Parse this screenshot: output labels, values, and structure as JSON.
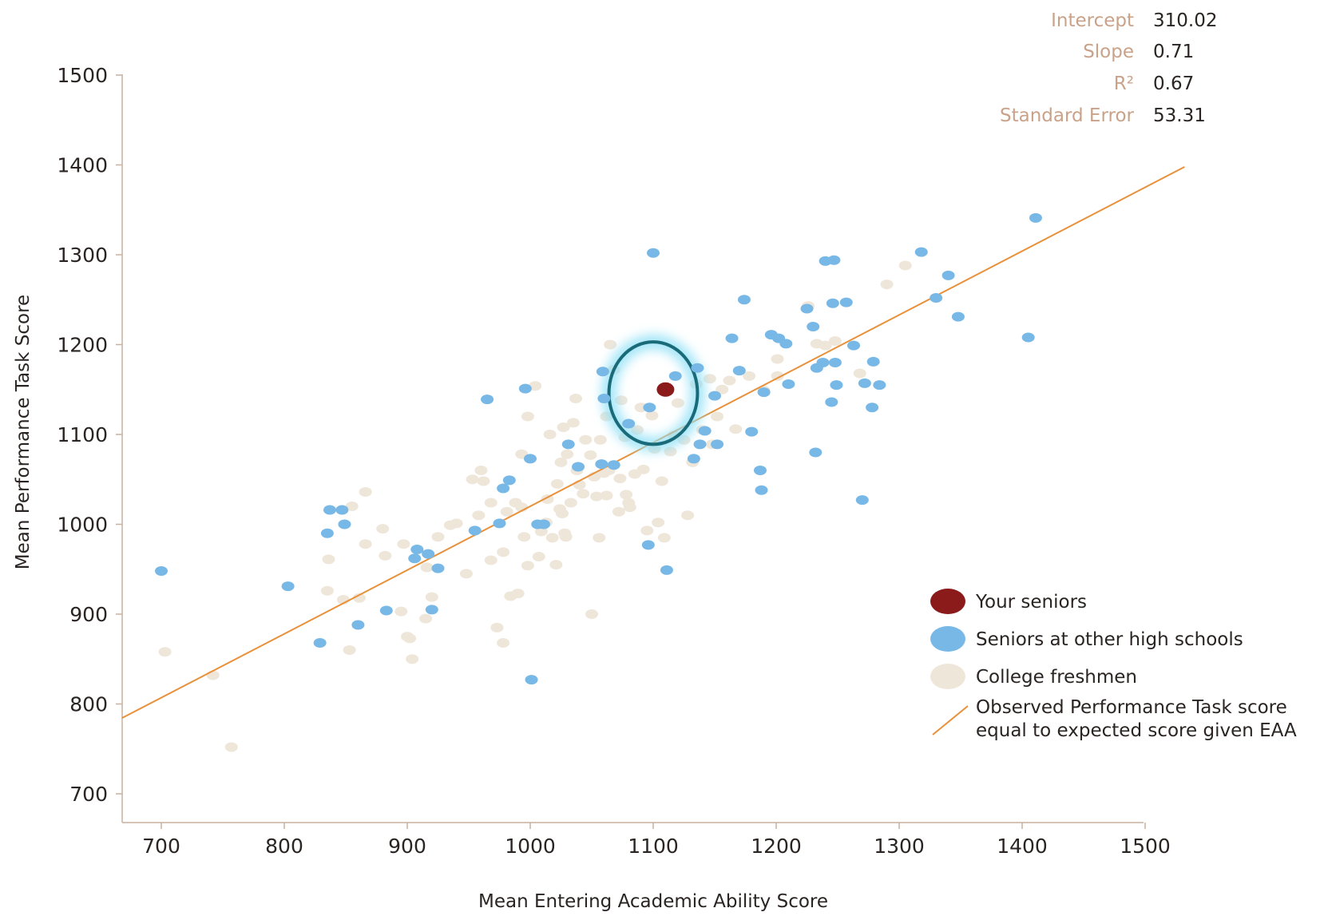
{
  "stats": [
    {
      "name": "Intercept",
      "value": "310.02"
    },
    {
      "name": "Slope",
      "value": "0.71"
    },
    {
      "name": "R²",
      "value": "0.67"
    },
    {
      "name": "Standard Error",
      "value": "53.31"
    }
  ],
  "chart_data": {
    "type": "scatter",
    "title": "",
    "xlabel": "Mean Entering Academic Ability Score",
    "ylabel": "Mean Performance Task Score",
    "xlim": [
      700,
      1500
    ],
    "ylim": [
      700,
      1500
    ],
    "xticks": [
      "700",
      "800",
      "900",
      "1000",
      "1100",
      "1200",
      "1300",
      "1400",
      "1500"
    ],
    "yticks": [
      "700",
      "800",
      "900",
      "1000",
      "1100",
      "1200",
      "1300",
      "1400",
      "1500"
    ],
    "grid": false,
    "legend_position": "bottom-right",
    "colors": {
      "your_seniors": "#8b1a1a",
      "other_seniors": "#78b8e6",
      "freshmen": "#efe6da",
      "line": "#e8913a",
      "highlight_ring": "#1a6b7a",
      "highlight_glow": "#8fe0f6",
      "axis": "#c9b19f"
    },
    "regression_line": {
      "name": "Observed Performance Task score equal to expected score given EAA",
      "intercept": 310.02,
      "slope": 0.71,
      "x_range": [
        668,
        1532
      ]
    },
    "highlight_ellipse": {
      "cx": 1100,
      "cy": 1146,
      "rx": 36,
      "ry": 57
    },
    "series": [
      {
        "name": "Your seniors",
        "points": [
          [
            1110,
            1150
          ]
        ]
      },
      {
        "name": "Seniors at other high schools",
        "points": [
          [
            700,
            948
          ],
          [
            803,
            931
          ],
          [
            829,
            868
          ],
          [
            835,
            990
          ],
          [
            837,
            1016
          ],
          [
            847,
            1016
          ],
          [
            849,
            1000
          ],
          [
            860,
            888
          ],
          [
            883,
            904
          ],
          [
            906,
            962
          ],
          [
            908,
            972
          ],
          [
            917,
            967
          ],
          [
            920,
            905
          ],
          [
            925,
            951
          ],
          [
            955,
            993
          ],
          [
            965,
            1139
          ],
          [
            975,
            1001
          ],
          [
            978,
            1040
          ],
          [
            983,
            1049
          ],
          [
            996,
            1151
          ],
          [
            1000,
            1073
          ],
          [
            1001,
            827
          ],
          [
            1006,
            1000
          ],
          [
            1011,
            1000
          ],
          [
            1031,
            1089
          ],
          [
            1039,
            1064
          ],
          [
            1058,
            1067
          ],
          [
            1059,
            1170
          ],
          [
            1060,
            1140
          ],
          [
            1068,
            1066
          ],
          [
            1080,
            1112
          ],
          [
            1096,
            977
          ],
          [
            1097,
            1130
          ],
          [
            1100,
            1302
          ],
          [
            1111,
            949
          ],
          [
            1118,
            1165
          ],
          [
            1133,
            1073
          ],
          [
            1136,
            1174
          ],
          [
            1138,
            1089
          ],
          [
            1142,
            1104
          ],
          [
            1150,
            1143
          ],
          [
            1152,
            1089
          ],
          [
            1164,
            1207
          ],
          [
            1170,
            1171
          ],
          [
            1174,
            1250
          ],
          [
            1180,
            1103
          ],
          [
            1187,
            1060
          ],
          [
            1188,
            1038
          ],
          [
            1190,
            1147
          ],
          [
            1196,
            1211
          ],
          [
            1202,
            1207
          ],
          [
            1208,
            1201
          ],
          [
            1210,
            1156
          ],
          [
            1225,
            1240
          ],
          [
            1230,
            1220
          ],
          [
            1232,
            1080
          ],
          [
            1233,
            1174
          ],
          [
            1238,
            1180
          ],
          [
            1240,
            1293
          ],
          [
            1245,
            1136
          ],
          [
            1246,
            1246
          ],
          [
            1247,
            1294
          ],
          [
            1248,
            1180
          ],
          [
            1249,
            1155
          ],
          [
            1257,
            1247
          ],
          [
            1263,
            1199
          ],
          [
            1270,
            1027
          ],
          [
            1272,
            1157
          ],
          [
            1278,
            1130
          ],
          [
            1279,
            1181
          ],
          [
            1284,
            1155
          ],
          [
            1318,
            1303
          ],
          [
            1330,
            1252
          ],
          [
            1340,
            1277
          ],
          [
            1348,
            1231
          ],
          [
            1405,
            1208
          ],
          [
            1411,
            1341
          ]
        ]
      },
      {
        "name": "College freshmen",
        "points": [
          [
            703,
            858
          ],
          [
            742,
            832
          ],
          [
            757,
            752
          ],
          [
            835,
            926
          ],
          [
            836,
            961
          ],
          [
            848,
            916
          ],
          [
            853,
            860
          ],
          [
            855,
            1020
          ],
          [
            861,
            918
          ],
          [
            866,
            978
          ],
          [
            866,
            1036
          ],
          [
            880,
            995
          ],
          [
            882,
            965
          ],
          [
            895,
            903
          ],
          [
            897,
            978
          ],
          [
            900,
            875
          ],
          [
            902,
            873
          ],
          [
            904,
            850
          ],
          [
            915,
            895
          ],
          [
            916,
            952
          ],
          [
            920,
            919
          ],
          [
            925,
            986
          ],
          [
            935,
            999
          ],
          [
            940,
            1001
          ],
          [
            948,
            945
          ],
          [
            953,
            1050
          ],
          [
            958,
            1010
          ],
          [
            960,
            1060
          ],
          [
            962,
            1048
          ],
          [
            968,
            960
          ],
          [
            968,
            1024
          ],
          [
            973,
            885
          ],
          [
            978,
            868
          ],
          [
            978,
            969
          ],
          [
            981,
            1014
          ],
          [
            984,
            920
          ],
          [
            988,
            1024
          ],
          [
            990,
            923
          ],
          [
            993,
            1078
          ],
          [
            993,
            1019
          ],
          [
            995,
            986
          ],
          [
            998,
            954
          ],
          [
            998,
            1120
          ],
          [
            1004,
            1154
          ],
          [
            1007,
            964
          ],
          [
            1009,
            992
          ],
          [
            1013,
            1002
          ],
          [
            1014,
            1028
          ],
          [
            1016,
            1100
          ],
          [
            1018,
            985
          ],
          [
            1021,
            955
          ],
          [
            1022,
            1045
          ],
          [
            1024,
            1017
          ],
          [
            1025,
            1069
          ],
          [
            1026,
            1012
          ],
          [
            1027,
            1108
          ],
          [
            1028,
            990
          ],
          [
            1029,
            986
          ],
          [
            1030,
            1078
          ],
          [
            1033,
            1024
          ],
          [
            1035,
            1113
          ],
          [
            1037,
            1140
          ],
          [
            1038,
            1060
          ],
          [
            1040,
            1044
          ],
          [
            1043,
            1034
          ],
          [
            1045,
            1094
          ],
          [
            1049,
            1077
          ],
          [
            1050,
            900
          ],
          [
            1052,
            1053
          ],
          [
            1054,
            1031
          ],
          [
            1056,
            985
          ],
          [
            1057,
            1094
          ],
          [
            1060,
            1057
          ],
          [
            1062,
            1120
          ],
          [
            1062,
            1032
          ],
          [
            1064,
            1060
          ],
          [
            1065,
            1200
          ],
          [
            1068,
            1172
          ],
          [
            1072,
            1014
          ],
          [
            1073,
            1051
          ],
          [
            1074,
            1138
          ],
          [
            1077,
            1097
          ],
          [
            1078,
            1033
          ],
          [
            1080,
            1024
          ],
          [
            1081,
            1019
          ],
          [
            1085,
            1056
          ],
          [
            1087,
            1105
          ],
          [
            1090,
            1130
          ],
          [
            1092,
            1061
          ],
          [
            1095,
            993
          ],
          [
            1099,
            1121
          ],
          [
            1101,
            1084
          ],
          [
            1104,
            1002
          ],
          [
            1107,
            1048
          ],
          [
            1109,
            985
          ],
          [
            1111,
            1151
          ],
          [
            1114,
            1081
          ],
          [
            1117,
            1099
          ],
          [
            1120,
            1135
          ],
          [
            1125,
            1094
          ],
          [
            1128,
            1010
          ],
          [
            1132,
            1069
          ],
          [
            1135,
            1156
          ],
          [
            1140,
            1105
          ],
          [
            1146,
            1162
          ],
          [
            1148,
            1089
          ],
          [
            1152,
            1120
          ],
          [
            1156,
            1150
          ],
          [
            1162,
            1160
          ],
          [
            1167,
            1106
          ],
          [
            1178,
            1165
          ],
          [
            1190,
            1149
          ],
          [
            1201,
            1165
          ],
          [
            1201,
            1184
          ],
          [
            1226,
            1243
          ],
          [
            1233,
            1201
          ],
          [
            1240,
            1199
          ],
          [
            1248,
            1204
          ],
          [
            1268,
            1168
          ],
          [
            1290,
            1267
          ],
          [
            1305,
            1288
          ]
        ]
      }
    ]
  },
  "legend": [
    {
      "kind": "dot",
      "color": "#8b1a1a",
      "label": "Your seniors"
    },
    {
      "kind": "dot",
      "color": "#78b8e6",
      "label": "Seniors at other high schools"
    },
    {
      "kind": "dot",
      "color": "#efe6da",
      "label": "College freshmen"
    },
    {
      "kind": "line",
      "color": "#e8913a",
      "label": "Observed Performance Task score",
      "label2": "equal to expected score given EAA"
    }
  ]
}
